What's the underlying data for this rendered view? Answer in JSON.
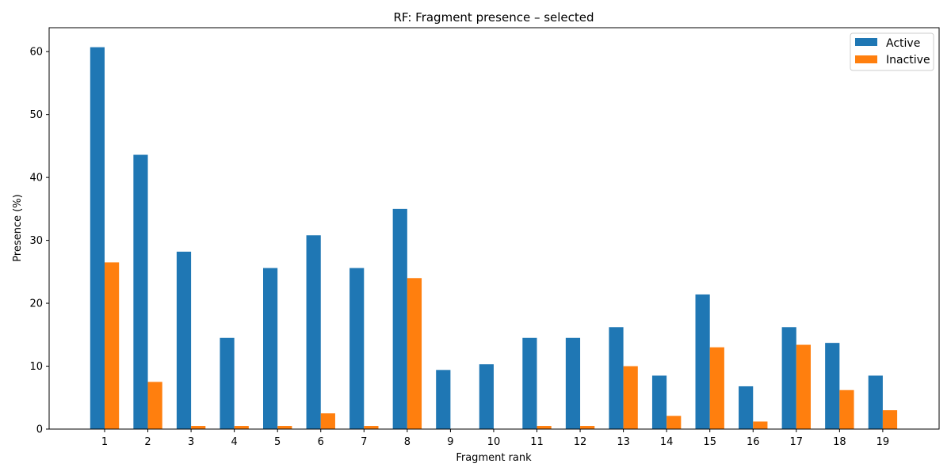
{
  "chart_data": {
    "type": "bar",
    "title": "RF: Fragment presence – selected",
    "xlabel": "Fragment rank",
    "ylabel": "Presence (%)",
    "ylim": [
      0,
      63.8
    ],
    "yticks": [
      0,
      10,
      20,
      30,
      40,
      50,
      60
    ],
    "grid": false,
    "legend_position": "top-right",
    "categories": [
      "1",
      "2",
      "3",
      "4",
      "5",
      "6",
      "7",
      "8",
      "9",
      "10",
      "11",
      "12",
      "13",
      "14",
      "15",
      "16",
      "17",
      "18",
      "19"
    ],
    "series": [
      {
        "name": "Active",
        "color": "#1f77b4",
        "values": [
          60.7,
          43.6,
          28.2,
          14.5,
          25.6,
          30.8,
          25.6,
          35.0,
          9.4,
          10.3,
          14.5,
          14.5,
          16.2,
          8.5,
          21.4,
          6.8,
          16.2,
          13.7,
          8.5
        ]
      },
      {
        "name": "Inactive",
        "color": "#ff7f0e",
        "values": [
          26.5,
          7.5,
          0.5,
          0.5,
          0.5,
          2.5,
          0.5,
          24.0,
          0.0,
          0.0,
          0.5,
          0.5,
          10.0,
          2.1,
          13.0,
          1.2,
          13.4,
          6.2,
          3.0
        ]
      }
    ]
  }
}
